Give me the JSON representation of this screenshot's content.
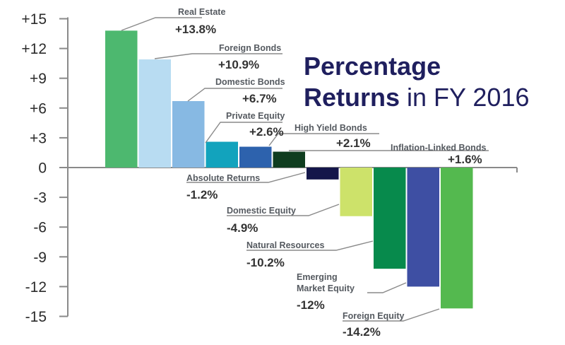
{
  "chart_data": {
    "type": "bar",
    "title_line1": "Percentage",
    "title_line2_bold": "Returns",
    "title_line2_rest": " in FY 2016",
    "xlabel": "",
    "ylabel": "",
    "ylim": [
      -15,
      15
    ],
    "yticks": [
      "+15",
      "+12",
      "+9",
      "+6",
      "+3",
      "0",
      "-3",
      "-6",
      "-9",
      "-12",
      "-15"
    ],
    "categories": [
      "Real Estate",
      "Foreign Bonds",
      "Domestic Bonds",
      "Private Equity",
      "High Yield Bonds",
      "Inflation-Linked Bonds",
      "Absolute Returns",
      "Domestic Equity",
      "Natural Resources",
      "Emerging Market Equity",
      "Foreign Equity"
    ],
    "category_label_lines": [
      [
        "Real Estate"
      ],
      [
        "Foreign Bonds"
      ],
      [
        "Domestic Bonds"
      ],
      [
        "Private Equity"
      ],
      [
        "High Yield Bonds"
      ],
      [
        "Inflation-Linked Bonds"
      ],
      [
        "Absolute Returns"
      ],
      [
        "Domestic Equity"
      ],
      [
        "Natural Resources"
      ],
      [
        "Emerging",
        "Market Equity"
      ],
      [
        "Foreign Equity"
      ]
    ],
    "values": [
      13.8,
      10.9,
      6.7,
      2.6,
      2.1,
      1.6,
      -1.2,
      -4.9,
      -10.2,
      -12,
      -14.2
    ],
    "value_labels": [
      "+13.8%",
      "+10.9%",
      "+6.7%",
      "+2.6%",
      "+2.1%",
      "+1.6%",
      "-1.2%",
      "-4.9%",
      "-10.2%",
      "-12%",
      "-14.2%"
    ],
    "colors": [
      "#4db86f",
      "#b8dcf2",
      "#87b9e3",
      "#12a3bd",
      "#2d62ad",
      "#0f3d1f",
      "#14164a",
      "#cde26a",
      "#078a4c",
      "#3e4fa3",
      "#54b94f"
    ],
    "title_color": "#1f1f5e"
  }
}
